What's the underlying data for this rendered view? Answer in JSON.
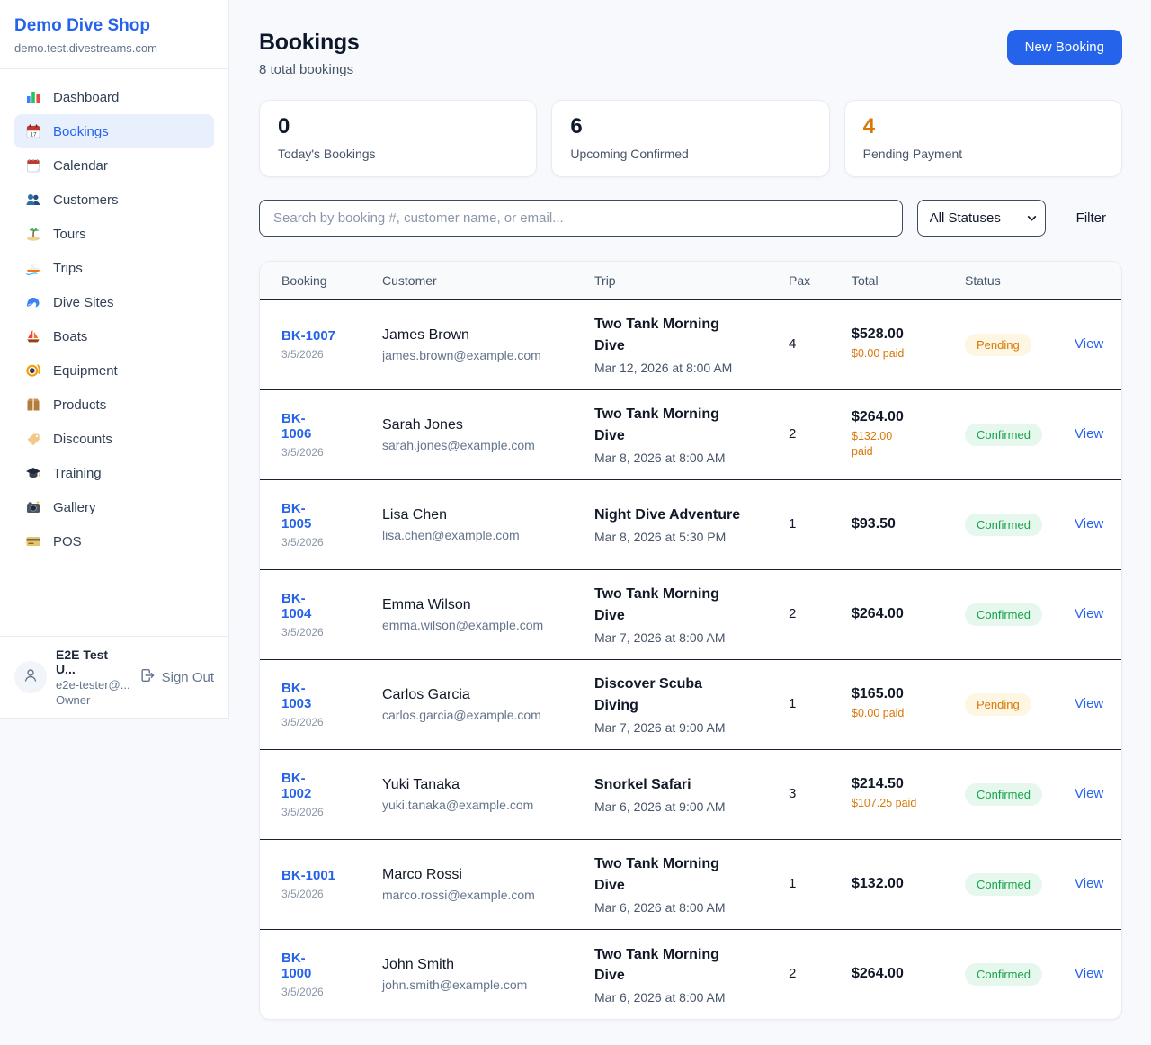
{
  "app": {
    "name": "Demo Dive Shop",
    "subdomain": "demo.test.divestreams.com"
  },
  "colors": {
    "accent": "#2563eb",
    "pending": "#d97706",
    "confirmed": "#16a34a",
    "dark": "#0f172a"
  },
  "sidebar": {
    "items": [
      {
        "label": "Dashboard",
        "icon": "bar-chart-icon",
        "active": false
      },
      {
        "label": "Bookings",
        "icon": "calendar-icon",
        "active": true
      },
      {
        "label": "Calendar",
        "icon": "tear-off-calendar-icon",
        "active": false
      },
      {
        "label": "Customers",
        "icon": "users-icon",
        "active": false
      },
      {
        "label": "Tours",
        "icon": "island-icon",
        "active": false
      },
      {
        "label": "Trips",
        "icon": "speedboat-icon",
        "active": false
      },
      {
        "label": "Dive Sites",
        "icon": "wave-icon",
        "active": false
      },
      {
        "label": "Boats",
        "icon": "sailboat-icon",
        "active": false
      },
      {
        "label": "Equipment",
        "icon": "diving-mask-icon",
        "active": false
      },
      {
        "label": "Products",
        "icon": "package-icon",
        "active": false
      },
      {
        "label": "Discounts",
        "icon": "tag-icon",
        "active": false
      },
      {
        "label": "Training",
        "icon": "graduation-cap-icon",
        "active": false
      },
      {
        "label": "Gallery",
        "icon": "camera-icon",
        "active": false
      },
      {
        "label": "POS",
        "icon": "credit-card-icon",
        "active": false
      }
    ],
    "user": {
      "name": "E2E Test U...",
      "email": "e2e-tester@...",
      "role": "Owner",
      "sign_out_label": "Sign Out",
      "sign_out_icon": "sign-out-icon",
      "avatar_icon": "person-icon"
    }
  },
  "header": {
    "title": "Bookings",
    "subtitle": "8 total bookings",
    "new_booking_label": "New Booking"
  },
  "stats": [
    {
      "value": "0",
      "label": "Today's Bookings",
      "color": "#0f172a"
    },
    {
      "value": "6",
      "label": "Upcoming Confirmed",
      "color": "#0f172a"
    },
    {
      "value": "4",
      "label": "Pending Payment",
      "color": "#d97706"
    }
  ],
  "filters": {
    "search_placeholder": "Search by booking #, customer name, or email...",
    "status_selected": "All Statuses",
    "chevron_icon": "chevron-down-icon",
    "filter_label": "Filter"
  },
  "table": {
    "columns": [
      "Booking",
      "Customer",
      "Trip",
      "Pax",
      "Total",
      "Status"
    ],
    "rows": [
      {
        "booking_number": "BK-1007",
        "booking_date": "3/5/2026",
        "customer_name": "James Brown",
        "customer_email": "james.brown@example.com",
        "trip_name": "Two Tank Morning\nDive",
        "trip_datetime": "Mar 12, 2026 at 8:00 AM",
        "pax": "4",
        "total": "$528.00",
        "paid": "$0.00 paid",
        "status": "Pending",
        "status_type": "pending",
        "action_label": "View"
      },
      {
        "booking_number": "BK-\n1006",
        "booking_date": "3/5/2026",
        "customer_name": "Sarah Jones",
        "customer_email": "sarah.jones@example.com",
        "trip_name": "Two Tank Morning\nDive",
        "trip_datetime": "Mar 8, 2026 at 8:00 AM",
        "pax": "2",
        "total": "$264.00",
        "paid": "$132.00\npaid",
        "status": "Confirmed",
        "status_type": "confirmed",
        "action_label": "View"
      },
      {
        "booking_number": "BK-\n1005",
        "booking_date": "3/5/2026",
        "customer_name": "Lisa Chen",
        "customer_email": "lisa.chen@example.com",
        "trip_name": "Night Dive Adventure",
        "trip_datetime": "Mar 8, 2026 at 5:30 PM",
        "pax": "1",
        "total": "$93.50",
        "paid": null,
        "status": "Confirmed",
        "status_type": "confirmed",
        "action_label": "View"
      },
      {
        "booking_number": "BK-\n1004",
        "booking_date": "3/5/2026",
        "customer_name": "Emma Wilson",
        "customer_email": "emma.wilson@example.com",
        "trip_name": "Two Tank Morning\nDive",
        "trip_datetime": "Mar 7, 2026 at 8:00 AM",
        "pax": "2",
        "total": "$264.00",
        "paid": null,
        "status": "Confirmed",
        "status_type": "confirmed",
        "action_label": "View"
      },
      {
        "booking_number": "BK-\n1003",
        "booking_date": "3/5/2026",
        "customer_name": "Carlos Garcia",
        "customer_email": "carlos.garcia@example.com",
        "trip_name": "Discover Scuba\nDiving",
        "trip_datetime": "Mar 7, 2026 at 9:00 AM",
        "pax": "1",
        "total": "$165.00",
        "paid": "$0.00 paid",
        "status": "Pending",
        "status_type": "pending",
        "action_label": "View"
      },
      {
        "booking_number": "BK-\n1002",
        "booking_date": "3/5/2026",
        "customer_name": "Yuki Tanaka",
        "customer_email": "yuki.tanaka@example.com",
        "trip_name": "Snorkel Safari",
        "trip_datetime": "Mar 6, 2026 at 9:00 AM",
        "pax": "3",
        "total": "$214.50",
        "paid": "$107.25 paid",
        "status": "Confirmed",
        "status_type": "confirmed",
        "action_label": "View"
      },
      {
        "booking_number": "BK-1001",
        "booking_date": "3/5/2026",
        "customer_name": "Marco Rossi",
        "customer_email": "marco.rossi@example.com",
        "trip_name": "Two Tank Morning\nDive",
        "trip_datetime": "Mar 6, 2026 at 8:00 AM",
        "pax": "1",
        "total": "$132.00",
        "paid": null,
        "status": "Confirmed",
        "status_type": "confirmed",
        "action_label": "View"
      },
      {
        "booking_number": "BK-\n1000",
        "booking_date": "3/5/2026",
        "customer_name": "John Smith",
        "customer_email": "john.smith@example.com",
        "trip_name": "Two Tank Morning\nDive",
        "trip_datetime": "Mar 6, 2026 at 8:00 AM",
        "pax": "2",
        "total": "$264.00",
        "paid": null,
        "status": "Confirmed",
        "status_type": "confirmed",
        "action_label": "View"
      }
    ]
  }
}
